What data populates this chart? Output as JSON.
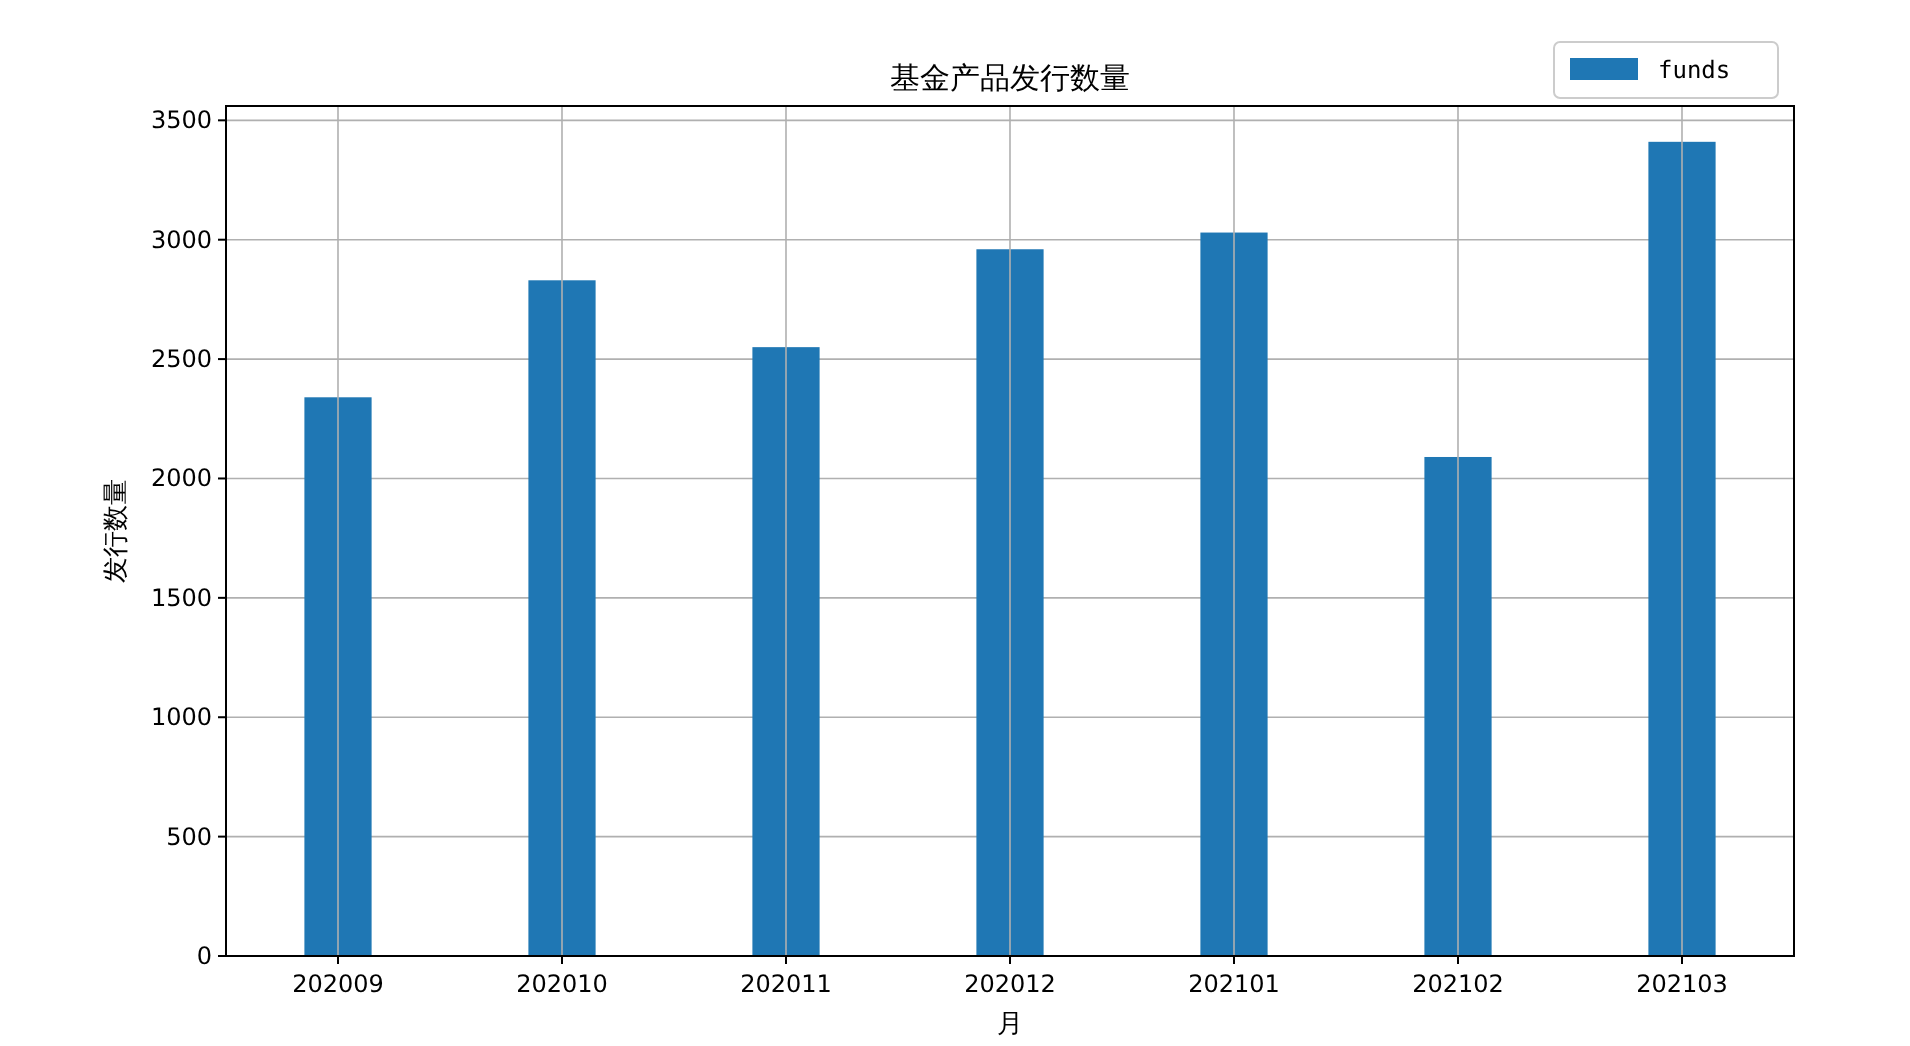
{
  "chart_data": {
    "type": "bar",
    "title": "基金产品发行数量",
    "xlabel": "月",
    "ylabel": "发行数量",
    "categories": [
      "202009",
      "202010",
      "202011",
      "202012",
      "202101",
      "202102",
      "202103"
    ],
    "series": [
      {
        "name": "funds",
        "color": "#1f77b4",
        "values": [
          2340,
          2830,
          2550,
          2960,
          3030,
          2090,
          3410
        ]
      }
    ],
    "ylim": [
      0,
      3560
    ],
    "yticks": [
      0,
      500,
      1000,
      1500,
      2000,
      2500,
      3000,
      3500
    ],
    "grid": true,
    "legend": "top right"
  }
}
